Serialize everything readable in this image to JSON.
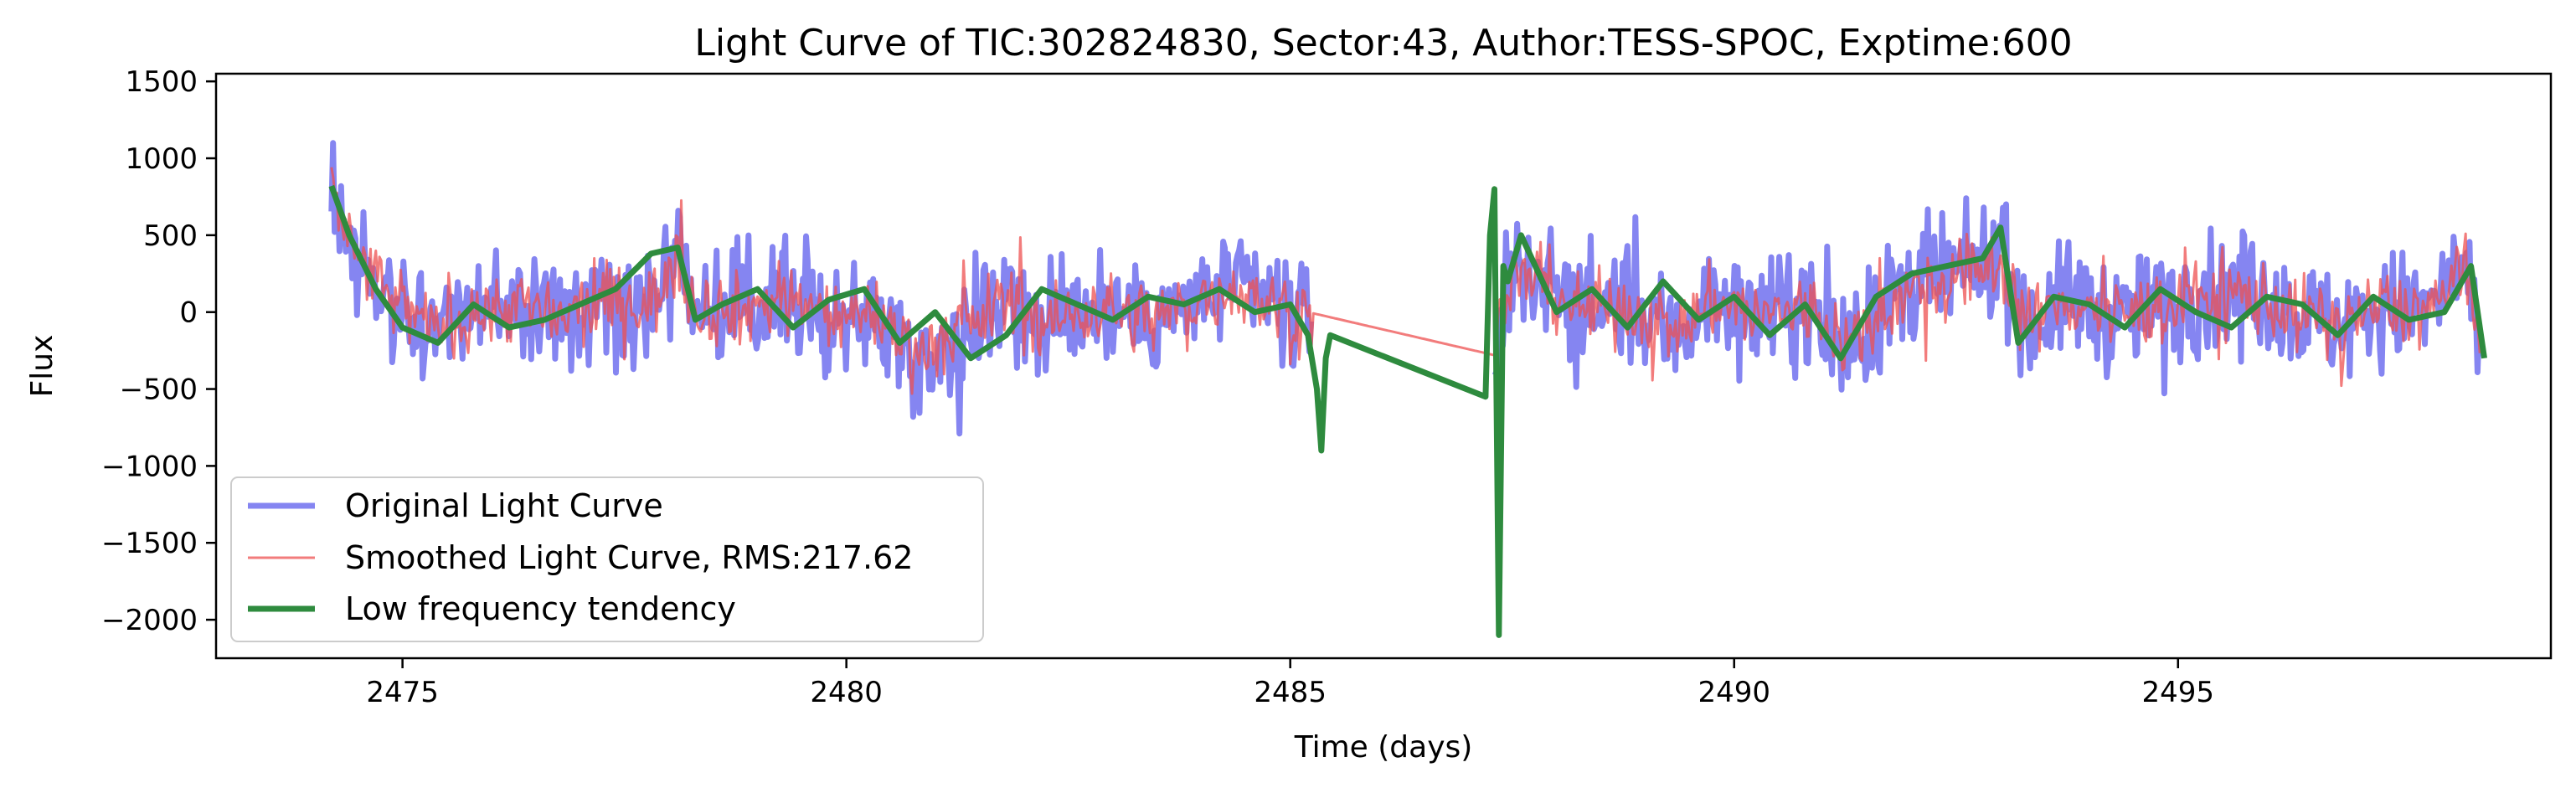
{
  "chart_data": {
    "type": "line",
    "title": "Light Curve of TIC:302824830, Sector:43, Author:TESS-SPOC, Exptime:600",
    "xlabel": "Time (days)",
    "ylabel": "Flux",
    "xlim": [
      2472.9,
      2499.2
    ],
    "ylim": [
      -2250,
      1550
    ],
    "x_ticks": [
      2475,
      2480,
      2485,
      2490,
      2495
    ],
    "x_tick_labels": [
      "2475",
      "2480",
      "2485",
      "2490",
      "2495"
    ],
    "y_ticks": [
      1500,
      1000,
      500,
      0,
      -500,
      -1000,
      -1500,
      -2000
    ],
    "y_tick_labels": [
      "1500",
      "1000",
      "500",
      "0",
      "−500",
      "−1000",
      "−1500",
      "−2000"
    ],
    "grid": false,
    "legend_position": "lower-left",
    "data_gap": [
      2485.45,
      2487.25
    ],
    "series": [
      {
        "name": "Original Light Curve",
        "color": "#6666ee",
        "x": [
          2474.2,
          2474.4,
          2474.8,
          2475.3,
          2475.8,
          2476.3,
          2476.8,
          2477.3,
          2477.8,
          2478.1,
          2478.3,
          2478.8,
          2479.3,
          2479.8,
          2480.3,
          2480.8,
          2481.3,
          2481.8,
          2482.3,
          2482.8,
          2483.3,
          2483.8,
          2484.3,
          2484.8,
          2485.2,
          2487.3,
          2487.5,
          2487.8,
          2488.3,
          2488.8,
          2489.3,
          2489.8,
          2490.3,
          2490.8,
          2491.3,
          2491.8,
          2492.3,
          2492.8,
          2493.0,
          2493.3,
          2493.8,
          2494.3,
          2494.8,
          2495.3,
          2495.8,
          2496.3,
          2496.8,
          2497.3,
          2497.8,
          2498.2,
          2498.4
        ],
        "y": [
          820,
          500,
          150,
          -100,
          0,
          50,
          -50,
          100,
          50,
          400,
          50,
          0,
          150,
          -50,
          0,
          -300,
          -150,
          100,
          -100,
          50,
          -50,
          0,
          200,
          50,
          -50,
          -400,
          300,
          250,
          0,
          50,
          -150,
          100,
          -50,
          50,
          -250,
          100,
          200,
          300,
          400,
          -100,
          100,
          -50,
          50,
          100,
          150,
          0,
          -100,
          50,
          0,
          300,
          -200
        ]
      },
      {
        "name": "Smoothed Light Curve, RMS:217.62",
        "color": "#ee5050",
        "x": [
          2474.2,
          2474.4,
          2474.8,
          2475.3,
          2475.8,
          2476.3,
          2476.8,
          2477.3,
          2477.8,
          2478.1,
          2478.3,
          2478.8,
          2479.3,
          2479.8,
          2480.3,
          2480.8,
          2481.3,
          2481.8,
          2482.3,
          2482.8,
          2483.3,
          2483.8,
          2484.3,
          2484.8,
          2485.2,
          2487.3,
          2487.5,
          2487.8,
          2488.3,
          2488.8,
          2489.3,
          2489.8,
          2490.3,
          2490.8,
          2491.3,
          2491.8,
          2492.3,
          2492.8,
          2493.0,
          2493.3,
          2493.8,
          2494.3,
          2494.8,
          2495.3,
          2495.8,
          2496.3,
          2496.8,
          2497.3,
          2497.8,
          2498.2,
          2498.4
        ],
        "y": [
          750,
          450,
          120,
          -100,
          0,
          50,
          -50,
          80,
          50,
          350,
          40,
          0,
          120,
          -40,
          0,
          -250,
          -120,
          80,
          -80,
          40,
          -40,
          0,
          170,
          40,
          0,
          -280,
          200,
          200,
          0,
          40,
          -120,
          80,
          -40,
          40,
          -200,
          80,
          170,
          260,
          350,
          -80,
          80,
          -40,
          40,
          80,
          120,
          0,
          -80,
          40,
          0,
          250,
          -150
        ]
      },
      {
        "name": "Low frequency tendency",
        "color": "#2e8b3e",
        "x": [
          2474.2,
          2474.4,
          2474.7,
          2475.0,
          2475.4,
          2475.8,
          2476.2,
          2476.6,
          2477.0,
          2477.4,
          2477.8,
          2478.1,
          2478.3,
          2478.6,
          2479.0,
          2479.4,
          2479.8,
          2480.2,
          2480.6,
          2481.0,
          2481.4,
          2481.8,
          2482.2,
          2482.6,
          2483.0,
          2483.4,
          2483.8,
          2484.2,
          2484.6,
          2485.0,
          2485.2,
          2485.3,
          2485.35,
          2485.4,
          2485.45,
          2487.2,
          2487.25,
          2487.3,
          2487.35,
          2487.4,
          2487.45,
          2487.6,
          2488.0,
          2488.4,
          2488.8,
          2489.2,
          2489.6,
          2490.0,
          2490.4,
          2490.8,
          2491.2,
          2491.6,
          2492.0,
          2492.4,
          2492.8,
          2493.0,
          2493.2,
          2493.6,
          2494.0,
          2494.4,
          2494.8,
          2495.2,
          2495.6,
          2496.0,
          2496.4,
          2496.8,
          2497.2,
          2497.6,
          2498.0,
          2498.3,
          2498.45
        ],
        "y": [
          820,
          500,
          150,
          -100,
          -200,
          50,
          -100,
          -50,
          50,
          150,
          380,
          420,
          -50,
          50,
          150,
          -100,
          80,
          150,
          -200,
          0,
          -300,
          -150,
          150,
          50,
          -50,
          100,
          50,
          150,
          0,
          50,
          -150,
          -500,
          -900,
          -300,
          -150,
          -550,
          500,
          800,
          -2100,
          300,
          200,
          500,
          0,
          150,
          -100,
          200,
          -50,
          100,
          -150,
          50,
          -300,
          100,
          250,
          300,
          350,
          550,
          -200,
          100,
          50,
          -100,
          150,
          0,
          -100,
          100,
          50,
          -150,
          100,
          -50,
          0,
          300,
          -300
        ]
      }
    ]
  }
}
